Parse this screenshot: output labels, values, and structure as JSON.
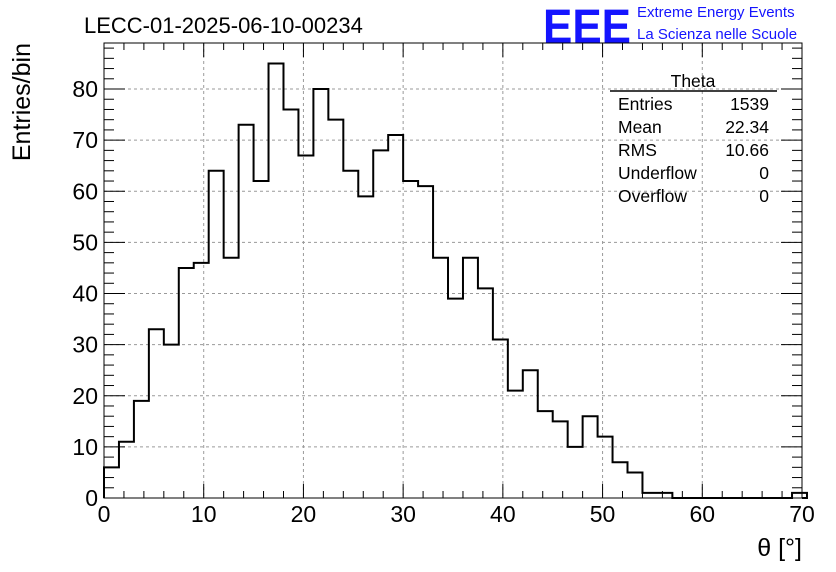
{
  "colors": {
    "logo": "#1414ff",
    "histogram": "#000000",
    "grid": "#9a9a9a"
  },
  "logo": {
    "mark": "EEE",
    "line1": "Extreme Energy Events",
    "line2": "La Scienza nelle Scuole"
  },
  "stats": {
    "name": "Theta",
    "rows": [
      {
        "label": "Entries",
        "value": "1539"
      },
      {
        "label": "Mean",
        "value": "22.34"
      },
      {
        "label": "RMS",
        "value": "10.66"
      },
      {
        "label": "Underflow",
        "value": "0"
      },
      {
        "label": "Overflow",
        "value": "0"
      }
    ]
  },
  "chart_data": {
    "type": "bar",
    "style": "step-histogram",
    "title": "LECC-01-2025-06-10-00234",
    "xlabel": "θ [°]",
    "ylabel": "Entries/bin",
    "xlim": [
      0,
      70
    ],
    "ylim": [
      0,
      89
    ],
    "bin_width": 1.5,
    "grid": true,
    "x_ticks": [
      0,
      10,
      20,
      30,
      40,
      50,
      60,
      70
    ],
    "y_ticks": [
      0,
      10,
      20,
      30,
      40,
      50,
      60,
      70,
      80
    ],
    "values": [
      6,
      11,
      19,
      33,
      30,
      45,
      46,
      64,
      47,
      73,
      62,
      85,
      76,
      67,
      80,
      74,
      64,
      59,
      68,
      71,
      62,
      61,
      47,
      39,
      47,
      41,
      31,
      21,
      25,
      17,
      15,
      10,
      16,
      12,
      7,
      5,
      1,
      1,
      0,
      0,
      0,
      0,
      0,
      0,
      0,
      0,
      1
    ]
  }
}
